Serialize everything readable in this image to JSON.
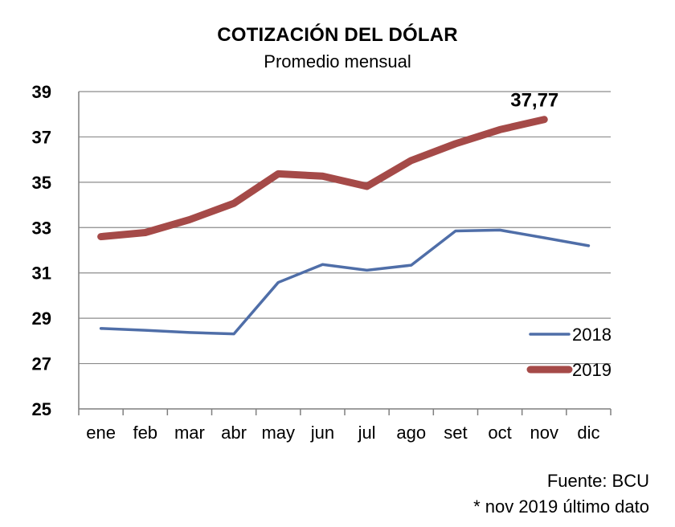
{
  "chart_data": {
    "type": "line",
    "title": "COTIZACIÓN DEL DÓLAR",
    "subtitle": "Promedio mensual",
    "categories": [
      "ene",
      "feb",
      "mar",
      "abr",
      "may",
      "jun",
      "jul",
      "ago",
      "set",
      "oct",
      "nov",
      "dic"
    ],
    "yticks": [
      "39",
      "37",
      "35",
      "33",
      "31",
      "29",
      "27",
      "25"
    ],
    "ylim": [
      25,
      39
    ],
    "series": [
      {
        "name": "2018",
        "color": "#4f6ea8",
        "values": [
          28.55,
          28.47,
          28.37,
          28.31,
          30.58,
          31.37,
          31.12,
          31.34,
          32.85,
          32.89,
          32.55,
          32.2
        ]
      },
      {
        "name": "2019",
        "color": "#a54a48",
        "values": [
          32.6,
          32.78,
          33.35,
          34.07,
          35.37,
          35.27,
          34.82,
          35.96,
          36.7,
          37.32,
          37.77,
          null
        ]
      }
    ],
    "annotation": {
      "label": "37,77",
      "series": "2019",
      "category": "nov"
    },
    "grid": true,
    "legend_position": "bottom-right",
    "source": "Fuente: BCU",
    "note": "* nov 2019 último dato"
  }
}
